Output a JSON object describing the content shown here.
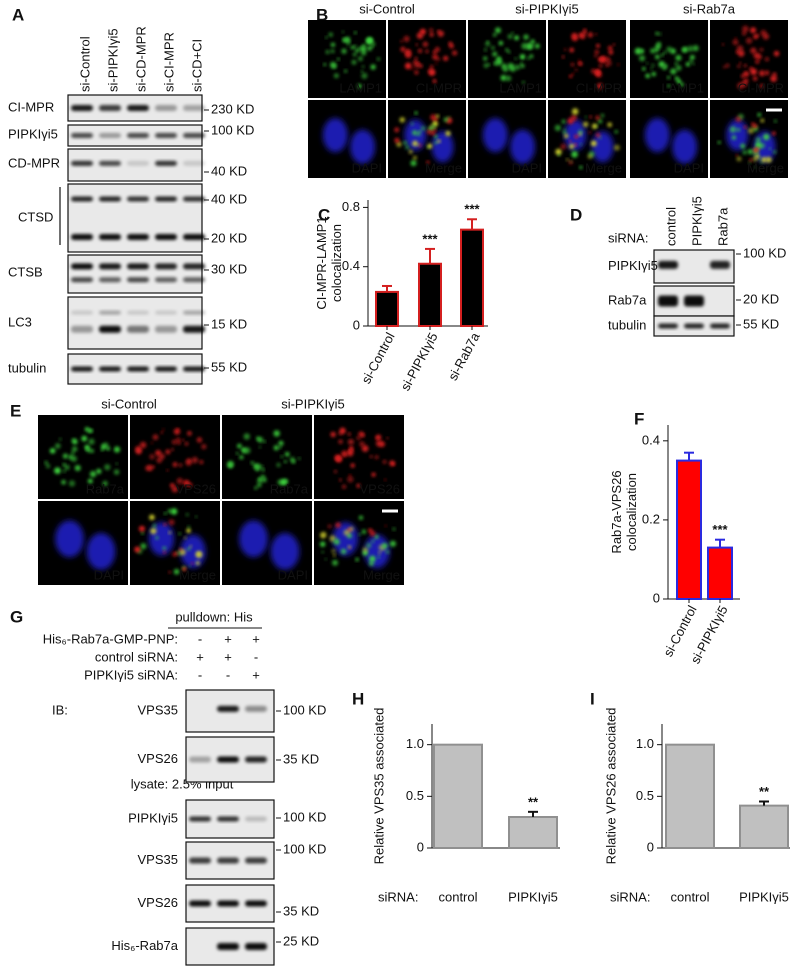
{
  "panels": {
    "A": {
      "label": "A",
      "lanes": [
        "si-Control",
        "si-PIPKIγi5",
        "si-CD-MPR",
        "si-CI-MPR",
        "si-CD+CI"
      ],
      "rows": [
        "CI-MPR",
        "PIPKIγi5",
        "CD-MPR",
        "CTSD",
        "CTSB",
        "LC3",
        "tubulin"
      ],
      "markers": [
        "230 KD",
        "100 KD",
        "40 KD",
        "40 KD",
        "20 KD",
        "30 KD",
        "15 KD",
        "55 KD"
      ]
    },
    "B": {
      "label": "B",
      "groups": [
        "si-Control",
        "si-PIPKIγi5",
        "si-Rab7a"
      ],
      "channels": [
        "LAMP1",
        "CI-MPR",
        "DAPI",
        "Merge"
      ]
    },
    "C": {
      "label": "C"
    },
    "D": {
      "label": "D",
      "axis_label": "siRNA:",
      "lanes": [
        "control",
        "PIPKIγi5",
        "Rab7a"
      ],
      "rows": [
        "PIPKIγi5",
        "Rab7a",
        "tubulin"
      ],
      "markers": [
        "100 KD",
        "20 KD",
        "55 KD"
      ]
    },
    "E": {
      "label": "E",
      "groups": [
        "si-Control",
        "si-PIPKIγi5"
      ],
      "channels": [
        "Rab7a",
        "VPS26",
        "DAPI",
        "Merge"
      ]
    },
    "F": {
      "label": "F"
    },
    "G": {
      "label": "G",
      "header": "pulldown: His",
      "conditions": [
        {
          "name": "His₆-Rab7a-GMP-PNP:",
          "signs": [
            "-",
            "+",
            "+"
          ]
        },
        {
          "name": "control siRNA:",
          "signs": [
            "+",
            "+",
            "-"
          ]
        },
        {
          "name": "PIPKIγi5 siRNA:",
          "signs": [
            "-",
            "-",
            "+"
          ]
        }
      ],
      "prefix": "IB:",
      "lysate": "lysate: 2.5% input",
      "rows": [
        {
          "name": "VPS35",
          "marker": "100 KD"
        },
        {
          "name": "VPS26",
          "marker": "35 KD"
        },
        {
          "name": "PIPKIγi5",
          "marker": "100 KD"
        },
        {
          "name": "VPS35",
          "marker": "100 KD"
        },
        {
          "name": "VPS26",
          "marker": "35 KD"
        },
        {
          "name": "His₆-Rab7a",
          "marker": "25 KD"
        }
      ]
    },
    "H": {
      "label": "H"
    },
    "I": {
      "label": "I"
    }
  },
  "chart_data": [
    {
      "type": "bar",
      "ylabel": [
        "CI-MPR-LAMP1",
        "colocalization"
      ],
      "categories": [
        "si-Control",
        "si-PIPKIγi5",
        "si-Rab7a"
      ],
      "values": [
        0.23,
        0.42,
        0.65
      ],
      "errors": [
        0.04,
        0.1,
        0.07
      ],
      "annotations": [
        null,
        "***",
        "***"
      ],
      "color": "#000000",
      "edgecolor": "#d42020",
      "ylim": [
        0,
        0.85
      ],
      "yticks": [
        0,
        0.4,
        0.8
      ]
    },
    {
      "type": "bar",
      "ylabel": [
        "Rab7a-VPS26",
        "colocalization"
      ],
      "categories": [
        "si-Control",
        "si-PIPKIγi5"
      ],
      "values": [
        0.35,
        0.13
      ],
      "errors": [
        0.02,
        0.02
      ],
      "annotations": [
        null,
        "***"
      ],
      "color": "#ff0000",
      "edgecolor": "#2a2ae0",
      "ylim": [
        0,
        0.44
      ],
      "yticks": [
        0,
        0.2,
        0.4
      ]
    },
    {
      "type": "bar",
      "ylabel": [
        "Relative VPS35 associated"
      ],
      "xlabel": "siRNA:",
      "categories": [
        "control",
        "PIPKIγi5"
      ],
      "values": [
        1.0,
        0.3
      ],
      "errors": [
        0,
        0.05
      ],
      "annotations": [
        null,
        "**"
      ],
      "color": "#c0c0c0",
      "edgecolor": "#909090",
      "ylim": [
        0,
        1.2
      ],
      "yticks": [
        0,
        0.5,
        {
          "value": 1,
          "label": "1.0"
        }
      ]
    },
    {
      "type": "bar",
      "ylabel": [
        "Relative VPS26 associated"
      ],
      "xlabel": "siRNA:",
      "categories": [
        "control",
        "PIPKIγi5"
      ],
      "values": [
        1.0,
        0.41
      ],
      "errors": [
        0,
        0.04
      ],
      "annotations": [
        null,
        "**"
      ],
      "color": "#c0c0c0",
      "edgecolor": "#909090",
      "ylim": [
        0,
        1.2
      ],
      "yticks": [
        0,
        0.5,
        {
          "value": 1,
          "label": "1.0"
        }
      ]
    }
  ]
}
